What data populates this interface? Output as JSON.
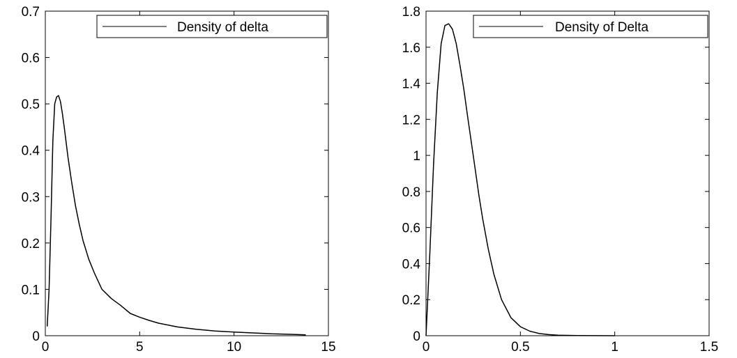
{
  "chart_data": [
    {
      "type": "line",
      "title": "",
      "xlabel": "",
      "ylabel": "",
      "xlim": [
        0,
        15
      ],
      "ylim": [
        0,
        0.7
      ],
      "x_ticks": [
        0,
        5,
        10,
        15
      ],
      "y_ticks": [
        0,
        0.1,
        0.2,
        0.3,
        0.4,
        0.5,
        0.6,
        0.7
      ],
      "x_tick_labels": [
        "0",
        "5",
        "10",
        "15"
      ],
      "y_tick_labels": [
        "0",
        "0.1",
        "0.2",
        "0.3",
        "0.4",
        "0.5",
        "0.6",
        "0.7"
      ],
      "grid": false,
      "legend_position": "top-right",
      "series": [
        {
          "name": "Density of delta",
          "color": "#000000",
          "x": [
            0.1,
            0.2,
            0.3,
            0.4,
            0.5,
            0.6,
            0.7,
            0.8,
            0.9,
            1.0,
            1.2,
            1.4,
            1.6,
            1.8,
            2.0,
            2.3,
            2.6,
            3.0,
            3.5,
            4.0,
            4.5,
            5.0,
            5.5,
            6.0,
            7.0,
            8.0,
            9.0,
            10.0,
            11.0,
            12.0,
            13.0,
            13.8
          ],
          "y": [
            0.02,
            0.1,
            0.25,
            0.42,
            0.5,
            0.515,
            0.518,
            0.505,
            0.48,
            0.45,
            0.385,
            0.33,
            0.28,
            0.24,
            0.205,
            0.165,
            0.135,
            0.1,
            0.08,
            0.065,
            0.048,
            0.04,
            0.033,
            0.027,
            0.019,
            0.014,
            0.01,
            0.008,
            0.006,
            0.004,
            0.003,
            0.002
          ]
        }
      ]
    },
    {
      "type": "line",
      "title": "",
      "xlabel": "",
      "ylabel": "",
      "xlim": [
        0,
        1.5
      ],
      "ylim": [
        0,
        1.8
      ],
      "x_ticks": [
        0,
        0.5,
        1,
        1.5
      ],
      "y_ticks": [
        0,
        0.2,
        0.4,
        0.6,
        0.8,
        1.0,
        1.2,
        1.4,
        1.6,
        1.8
      ],
      "x_tick_labels": [
        "0",
        "0.5",
        "1",
        "1.5"
      ],
      "y_tick_labels": [
        "0",
        "0.2",
        "0.4",
        "0.6",
        "0.8",
        "1",
        "1.2",
        "1.4",
        "1.6",
        "1.8"
      ],
      "grid": false,
      "legend_position": "top-right",
      "series": [
        {
          "name": "Density of Delta",
          "color": "#000000",
          "x": [
            0,
            0.02,
            0.04,
            0.06,
            0.08,
            0.1,
            0.12,
            0.14,
            0.16,
            0.18,
            0.2,
            0.22,
            0.25,
            0.28,
            0.3,
            0.33,
            0.36,
            0.4,
            0.45,
            0.5,
            0.55,
            0.6,
            0.65,
            0.7,
            0.8,
            0.9,
            1.0
          ],
          "y": [
            0.0,
            0.45,
            0.95,
            1.35,
            1.62,
            1.72,
            1.73,
            1.7,
            1.62,
            1.5,
            1.37,
            1.22,
            1.0,
            0.78,
            0.65,
            0.48,
            0.34,
            0.2,
            0.1,
            0.05,
            0.025,
            0.012,
            0.006,
            0.003,
            0.001,
            0.0003,
            0.0
          ]
        }
      ]
    }
  ]
}
